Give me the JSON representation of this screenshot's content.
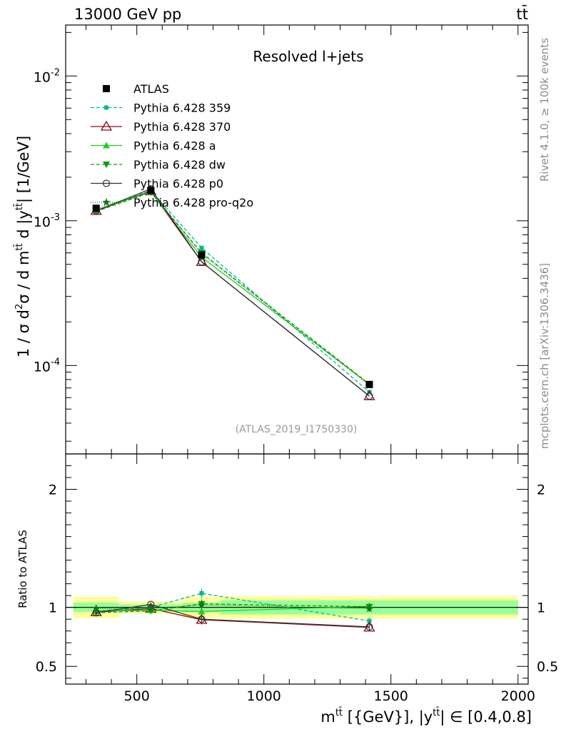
{
  "header": {
    "left": "13000 GeV pp",
    "right": "tt̄"
  },
  "side_labels": {
    "rivet": "Rivet 4.1.0, ≥ 100k events",
    "mcplots": "mcplots.cern.ch [arXiv:1306.3436]"
  },
  "chart_data": {
    "type": "line",
    "title": "Resolved l+jets",
    "analysis_id": "(ATLAS_2019_I1750330)",
    "xlabel": "m^{tt̄} [{GeV}], |y^{tt̄}| ∈ [0.4,0.8]",
    "xlabel_parts": {
      "m": "m",
      "tt": "tt̄",
      "bracket": " [{GeV}], |y",
      "range": "| ∈ [0.4,0.8]"
    },
    "ylabel": "1 / σ d²σ / d m^{tt̄} d |y^{tt̄}| [1/GeV]",
    "ylabel_parts": {
      "a": "1 / σ d",
      "two": "2",
      "b": "σ / d m",
      "tt": "tt̄",
      "c": " d |y",
      "d": "| [1/GeV]"
    },
    "ratio_ylabel": "Ratio to ATLAS",
    "xlim": [
      220,
      2040
    ],
    "ylim": [
      2.45e-05,
      0.0225
    ],
    "ratio_ylim": [
      0.35,
      2.3
    ],
    "x_ticks": [
      500,
      1000,
      1500,
      2000
    ],
    "x_tick_labels": [
      "500",
      "1000",
      "1500",
      "2000"
    ],
    "y_ticks": [
      0.0001,
      0.001,
      0.01
    ],
    "y_tick_labels": [
      "10^-4",
      "10^-3",
      "10^-2"
    ],
    "ratio_ticks": [
      0.5,
      1,
      2
    ],
    "ratio_tick_labels": [
      "0.5",
      "1",
      "2"
    ],
    "bins": [
      {
        "lo": 250,
        "hi": 430,
        "stat": 0.04,
        "total": 0.09
      },
      {
        "lo": 430,
        "hi": 680,
        "stat": 0.025,
        "total": 0.05
      },
      {
        "lo": 680,
        "hi": 830,
        "stat": 0.04,
        "total": 0.09
      },
      {
        "lo": 830,
        "hi": 2000,
        "stat": 0.06,
        "total": 0.095
      }
    ],
    "x": [
      340,
      555,
      755,
      1415
    ],
    "data": {
      "name": "ATLAS",
      "values": [
        0.00122,
        0.00162,
        0.00058,
        7.4e-05
      ],
      "errors": [
        4e-05,
        4e-05,
        2.3e-05,
        3e-06
      ]
    },
    "series": [
      {
        "name": "Pythia 6.428 359",
        "color": "#00b895",
        "dash": "5,3",
        "marker": "square",
        "values": [
          0.00118,
          0.00162,
          0.00065,
          6.55e-05
        ],
        "ratio": [
          0.97,
          1.0,
          1.12,
          0.885
        ],
        "ratio_err": [
          0.03,
          0.02,
          0.04,
          0.03
        ]
      },
      {
        "name": "Pythia 6.428 370",
        "color": "#8b0a1a",
        "dash": "",
        "marker": "open-triangle",
        "values": [
          0.00117,
          0.0016,
          0.00052,
          6.15e-05
        ],
        "ratio": [
          0.96,
          0.99,
          0.895,
          0.83
        ],
        "ratio_err": [
          0.03,
          0.02,
          0.04,
          0.03
        ]
      },
      {
        "name": "Pythia 6.428 a",
        "color": "#22cc22",
        "dash": "",
        "marker": "triangle",
        "values": [
          0.00118,
          0.00158,
          0.00056,
          7.45e-05
        ],
        "ratio": [
          0.97,
          0.975,
          0.965,
          1.01
        ],
        "ratio_err": [
          0.03,
          0.02,
          0.04,
          0.03
        ]
      },
      {
        "name": "Pythia 6.428 dw",
        "color": "#119911",
        "dash": "5,3",
        "marker": "down-triangle",
        "values": [
          0.00116,
          0.00157,
          0.0006,
          7.45e-05
        ],
        "ratio": [
          0.955,
          0.97,
          1.03,
          1.005
        ],
        "ratio_err": [
          0.03,
          0.02,
          0.04,
          0.03
        ]
      },
      {
        "name": "Pythia 6.428 p0",
        "color": "#333333",
        "dash": "",
        "marker": "open-circle",
        "values": [
          0.00117,
          0.00166,
          0.00052,
          6.15e-05
        ],
        "ratio": [
          0.955,
          1.025,
          0.9,
          0.835
        ],
        "ratio_err": [
          0.03,
          0.02,
          0.04,
          0.03
        ]
      },
      {
        "name": "Pythia 6.428 pro-q2o",
        "color": "#117711",
        "dash": "1,2",
        "marker": "star",
        "values": [
          0.00121,
          0.0016,
          0.00059,
          7.3e-05
        ],
        "ratio": [
          0.99,
          0.99,
          1.02,
          0.99
        ],
        "ratio_err": [
          0.03,
          0.02,
          0.04,
          0.03
        ]
      }
    ]
  }
}
